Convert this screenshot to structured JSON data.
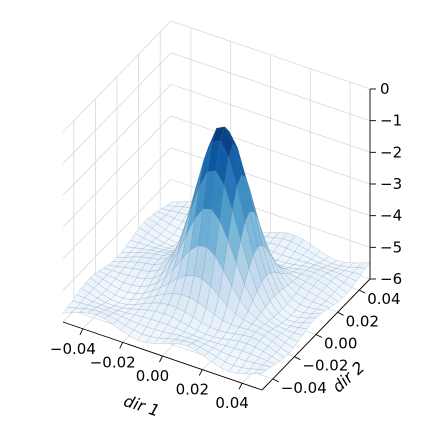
{
  "chart_data": {
    "type": "surface3d",
    "title": "",
    "xlabel": "dir 1",
    "ylabel": "dir 2",
    "zlabel": "",
    "xlim": [
      -0.05,
      0.05
    ],
    "ylim": [
      -0.05,
      0.05
    ],
    "zlim": [
      -6,
      0
    ],
    "x_ticks": [
      "-0.04",
      "-0.02",
      "0.00",
      "0.02",
      "0.04"
    ],
    "y_ticks": [
      "-0.04",
      "-0.02",
      "0.00",
      "0.02",
      "0.04"
    ],
    "z_ticks": [
      "0",
      "-1",
      "-2",
      "-3",
      "-4",
      "-5",
      "-6"
    ],
    "x_tick_values": [
      -0.04,
      -0.02,
      0.0,
      0.02,
      0.04
    ],
    "y_tick_values": [
      -0.04,
      -0.02,
      0.0,
      0.02,
      0.04
    ],
    "z_tick_values": [
      0,
      -1,
      -2,
      -3,
      -4,
      -5,
      -6
    ],
    "colormap": "Blues",
    "grid": true,
    "surface": {
      "grid_n": 25,
      "peak_z": -0.4,
      "base_z": -5.6,
      "peak_center": [
        0.003,
        0.0
      ],
      "peak_width": 0.012
    }
  }
}
